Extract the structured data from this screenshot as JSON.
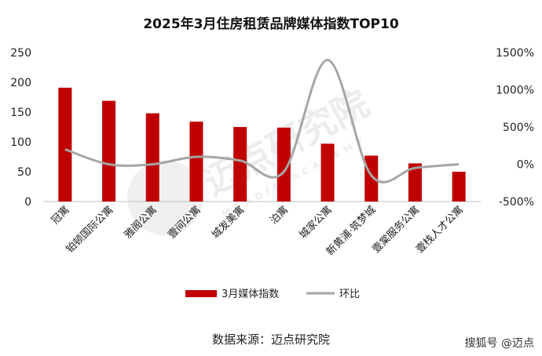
{
  "chart_data": {
    "type": "bar",
    "title": "2025年3月住房租赁品牌媒体指数TOP10",
    "categories": [
      "冠寓",
      "铂顿国际公寓",
      "雅阁公寓",
      "壹间公寓",
      "城发美寓",
      "泊寓",
      "城家公寓",
      "新黄浦·筑梦城",
      "壹棠服务公寓",
      "壹栈人才公寓"
    ],
    "series": [
      {
        "name": "3月媒体指数",
        "type": "bar",
        "axis": "left",
        "color": "#C00000",
        "values": [
          191,
          169,
          148,
          134,
          125,
          124,
          97,
          77,
          64,
          50
        ]
      },
      {
        "name": "环比",
        "type": "line",
        "axis": "right",
        "color": "#A6A6A6",
        "smooth": true,
        "values": [
          200,
          0,
          0,
          100,
          50,
          -100,
          1400,
          -150,
          -50,
          0
        ]
      }
    ],
    "y_left": {
      "min": 0,
      "max": 250,
      "ticks": [
        0,
        50,
        100,
        150,
        200,
        250
      ]
    },
    "y_right": {
      "min": -500,
      "max": 1500,
      "ticks": [
        "-500%",
        "0%",
        "500%",
        "1000%",
        "1500%"
      ]
    },
    "grid": false,
    "legend_position": "bottom"
  },
  "source": "数据来源：迈点研究院",
  "watermark": {
    "text": "迈点研究院",
    "subtext": "MEADIN ACADEMY"
  },
  "corner_logo": "搜狐号 @迈点"
}
